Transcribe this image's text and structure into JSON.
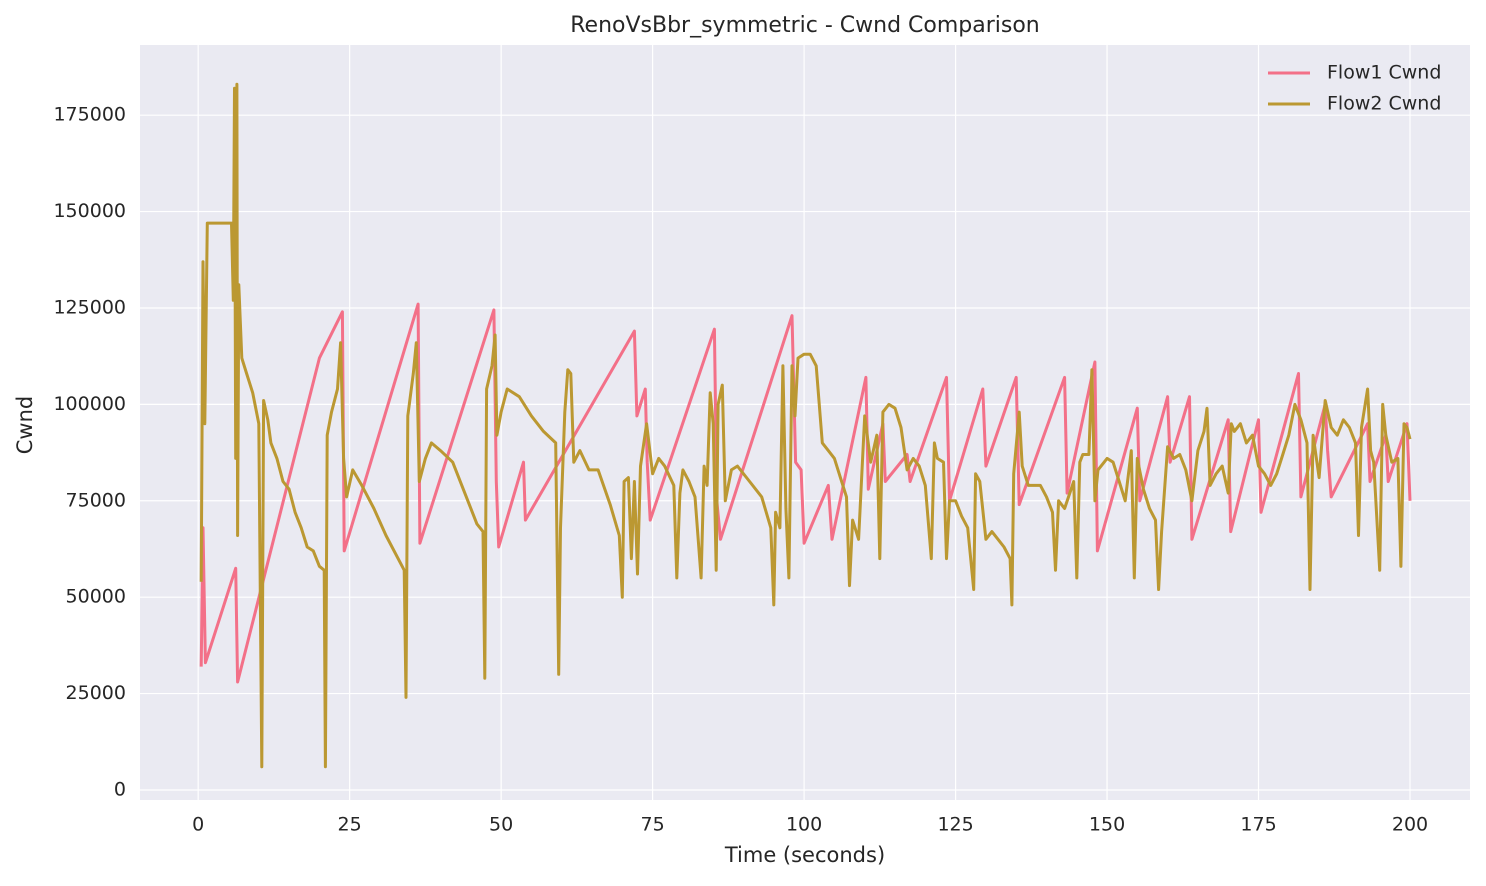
{
  "chart_data": {
    "type": "line",
    "title": "RenoVsBbr_symmetric - Cwnd Comparison",
    "xlabel": "Time (seconds)",
    "ylabel": "Cwnd",
    "xlim": [
      -9.6,
      209.9
    ],
    "ylim": [
      -2600,
      193200
    ],
    "xticks": [
      0,
      25,
      50,
      75,
      100,
      125,
      150,
      175,
      200
    ],
    "yticks": [
      0,
      25000,
      50000,
      75000,
      100000,
      125000,
      150000,
      175000
    ],
    "grid": true,
    "legend": "upper-right",
    "series": [
      {
        "name": "Flow1 Cwnd",
        "color": "#f37088",
        "x": [
          0.5,
          0.8,
          1.2,
          1.6,
          6.2,
          6.5,
          20,
          23.8,
          24.1,
          36.3,
          36.6,
          48.8,
          49.2,
          49.6,
          53.7,
          54,
          72,
          72.4,
          73.8,
          74.1,
          74.6,
          85.2,
          85.6,
          86.2,
          98,
          98.6,
          99.5,
          100,
          104,
          104.6,
          110.2,
          110.6,
          113,
          113.4,
          117,
          117.5,
          123.5,
          124,
          129.5,
          130,
          135,
          135.5,
          143,
          143.4,
          148,
          148.4,
          155,
          155.4,
          160,
          160.4,
          163.6,
          164,
          170,
          170.4,
          175,
          175.4,
          181.6,
          182,
          186,
          186.4,
          187,
          193,
          193.4,
          196,
          196.4,
          199.5,
          200
        ],
        "values": [
          32000,
          68000,
          33000,
          35000,
          57500,
          28000,
          112000,
          124000,
          62000,
          126000,
          64000,
          124500,
          80000,
          63000,
          85000,
          70000,
          119000,
          97000,
          104000,
          85000,
          70000,
          119500,
          75000,
          65000,
          123000,
          85000,
          83000,
          64000,
          79000,
          65000,
          107000,
          78000,
          95000,
          80000,
          87000,
          80000,
          107000,
          75000,
          104000,
          84000,
          107000,
          74000,
          107000,
          77000,
          111000,
          62000,
          99000,
          75000,
          102000,
          85000,
          102000,
          65000,
          96000,
          67000,
          96000,
          72000,
          108000,
          76000,
          100000,
          88000,
          76000,
          95000,
          80000,
          92000,
          80000,
          95000,
          75000
        ]
      },
      {
        "name": "Flow2 Cwnd",
        "color": "#bb9832",
        "x": [
          0.5,
          0.8,
          1.1,
          1.5,
          5.5,
          5.8,
          6.0,
          6.2,
          6.4,
          6.5,
          6.7,
          7.2,
          8,
          9,
          10,
          10.5,
          10.8,
          11.5,
          12,
          13,
          14,
          15,
          16,
          17,
          18,
          19,
          20,
          20.8,
          21,
          21.3,
          22,
          23,
          23.5,
          24,
          24.5,
          25.5,
          27,
          29,
          31,
          33,
          34,
          34.3,
          34.6,
          35.5,
          36,
          36.5,
          37.5,
          38.5,
          40,
          42,
          44,
          46,
          47,
          47.3,
          47.6,
          48.5,
          49,
          49.3,
          50,
          51,
          53,
          55,
          57,
          59,
          59.5,
          59.8,
          60.5,
          61,
          61.5,
          62,
          63,
          64.5,
          66,
          68,
          69.5,
          70,
          70.3,
          71,
          71.5,
          72,
          72.5,
          73,
          74,
          75,
          76,
          77,
          78.5,
          79,
          79.5,
          80,
          81,
          82,
          83,
          83.5,
          84,
          84.5,
          85,
          85.5,
          85.8,
          86.5,
          87,
          88,
          89,
          91,
          93,
          94.5,
          95,
          95.3,
          96,
          96.5,
          97,
          97.5,
          98,
          98.5,
          99,
          100,
          101,
          102,
          103,
          104,
          105,
          106,
          107,
          107.5,
          108,
          109,
          110,
          111,
          112,
          112.5,
          113,
          114,
          115,
          116,
          117,
          118,
          119,
          120,
          121,
          121.5,
          122,
          123,
          123.5,
          124,
          125,
          126,
          127,
          128,
          128.3,
          129,
          130,
          131,
          132,
          133,
          134,
          134.3,
          134.6,
          135.5,
          136,
          137,
          139,
          140,
          141,
          141.5,
          142,
          143,
          144.5,
          145,
          145.5,
          146,
          147,
          147.5,
          148,
          148.5,
          150,
          151,
          152,
          153,
          154,
          154.5,
          155,
          156,
          157,
          158,
          158.5,
          159,
          160,
          161,
          162,
          163,
          164,
          165,
          166,
          166.5,
          167,
          168,
          169,
          170,
          170.5,
          171,
          172,
          173,
          174,
          175,
          176,
          177,
          178,
          179,
          180,
          181,
          182,
          183,
          183.5,
          184,
          185,
          186,
          187,
          188,
          189,
          190,
          191,
          191.5,
          192,
          193,
          193.5,
          194,
          195,
          195.5,
          196,
          197,
          198,
          198.5,
          199,
          199.5,
          200
        ],
        "values": [
          54000,
          137000,
          95000,
          147000,
          147000,
          127000,
          182000,
          86000,
          183000,
          66000,
          131000,
          112000,
          108000,
          103000,
          95000,
          6000,
          101000,
          96000,
          90000,
          86000,
          80000,
          78000,
          72000,
          68000,
          63000,
          62000,
          58000,
          57000,
          6000,
          92000,
          98000,
          104000,
          116000,
          86000,
          76000,
          83000,
          79000,
          73000,
          66000,
          60000,
          57000,
          24000,
          97000,
          108000,
          116000,
          80000,
          86000,
          90000,
          88000,
          85000,
          77000,
          69000,
          67000,
          29000,
          104000,
          110000,
          118000,
          92000,
          98000,
          104000,
          102000,
          97000,
          93000,
          90000,
          30000,
          68000,
          98000,
          109000,
          108000,
          85000,
          88000,
          83000,
          83000,
          74000,
          66000,
          50000,
          80000,
          81000,
          60000,
          80000,
          56000,
          84000,
          95000,
          82000,
          86000,
          84000,
          79000,
          55000,
          77000,
          83000,
          80000,
          76000,
          55000,
          84000,
          79000,
          103000,
          95000,
          57000,
          100000,
          105000,
          75000,
          83000,
          84000,
          80000,
          76000,
          68000,
          48000,
          72000,
          68000,
          110000,
          73000,
          55000,
          110000,
          97000,
          112000,
          113000,
          113000,
          110000,
          90000,
          88000,
          86000,
          81000,
          76000,
          53000,
          70000,
          65000,
          97000,
          85000,
          92000,
          60000,
          98000,
          100000,
          99000,
          94000,
          83000,
          86000,
          84000,
          79000,
          60000,
          90000,
          86000,
          85000,
          60000,
          75000,
          75000,
          71000,
          68000,
          52000,
          82000,
          80000,
          65000,
          67000,
          65000,
          63000,
          60000,
          48000,
          82000,
          98000,
          84000,
          79000,
          79000,
          76000,
          72000,
          57000,
          75000,
          73000,
          80000,
          55000,
          85000,
          87000,
          87000,
          109000,
          75000,
          83000,
          86000,
          85000,
          80000,
          75000,
          88000,
          55000,
          86000,
          78000,
          73000,
          70000,
          52000,
          67000,
          89000,
          86000,
          87000,
          83000,
          75000,
          88000,
          93000,
          99000,
          79000,
          82000,
          84000,
          77000,
          95000,
          93000,
          95000,
          90000,
          92000,
          84000,
          82000,
          79000,
          82000,
          87000,
          92000,
          100000,
          96000,
          90000,
          52000,
          92000,
          81000,
          101000,
          94000,
          92000,
          96000,
          94000,
          90000,
          66000,
          94000,
          104000,
          88000,
          85000,
          57000,
          100000,
          92000,
          85000,
          86000,
          58000,
          95000,
          94000,
          91000
        ]
      }
    ]
  }
}
